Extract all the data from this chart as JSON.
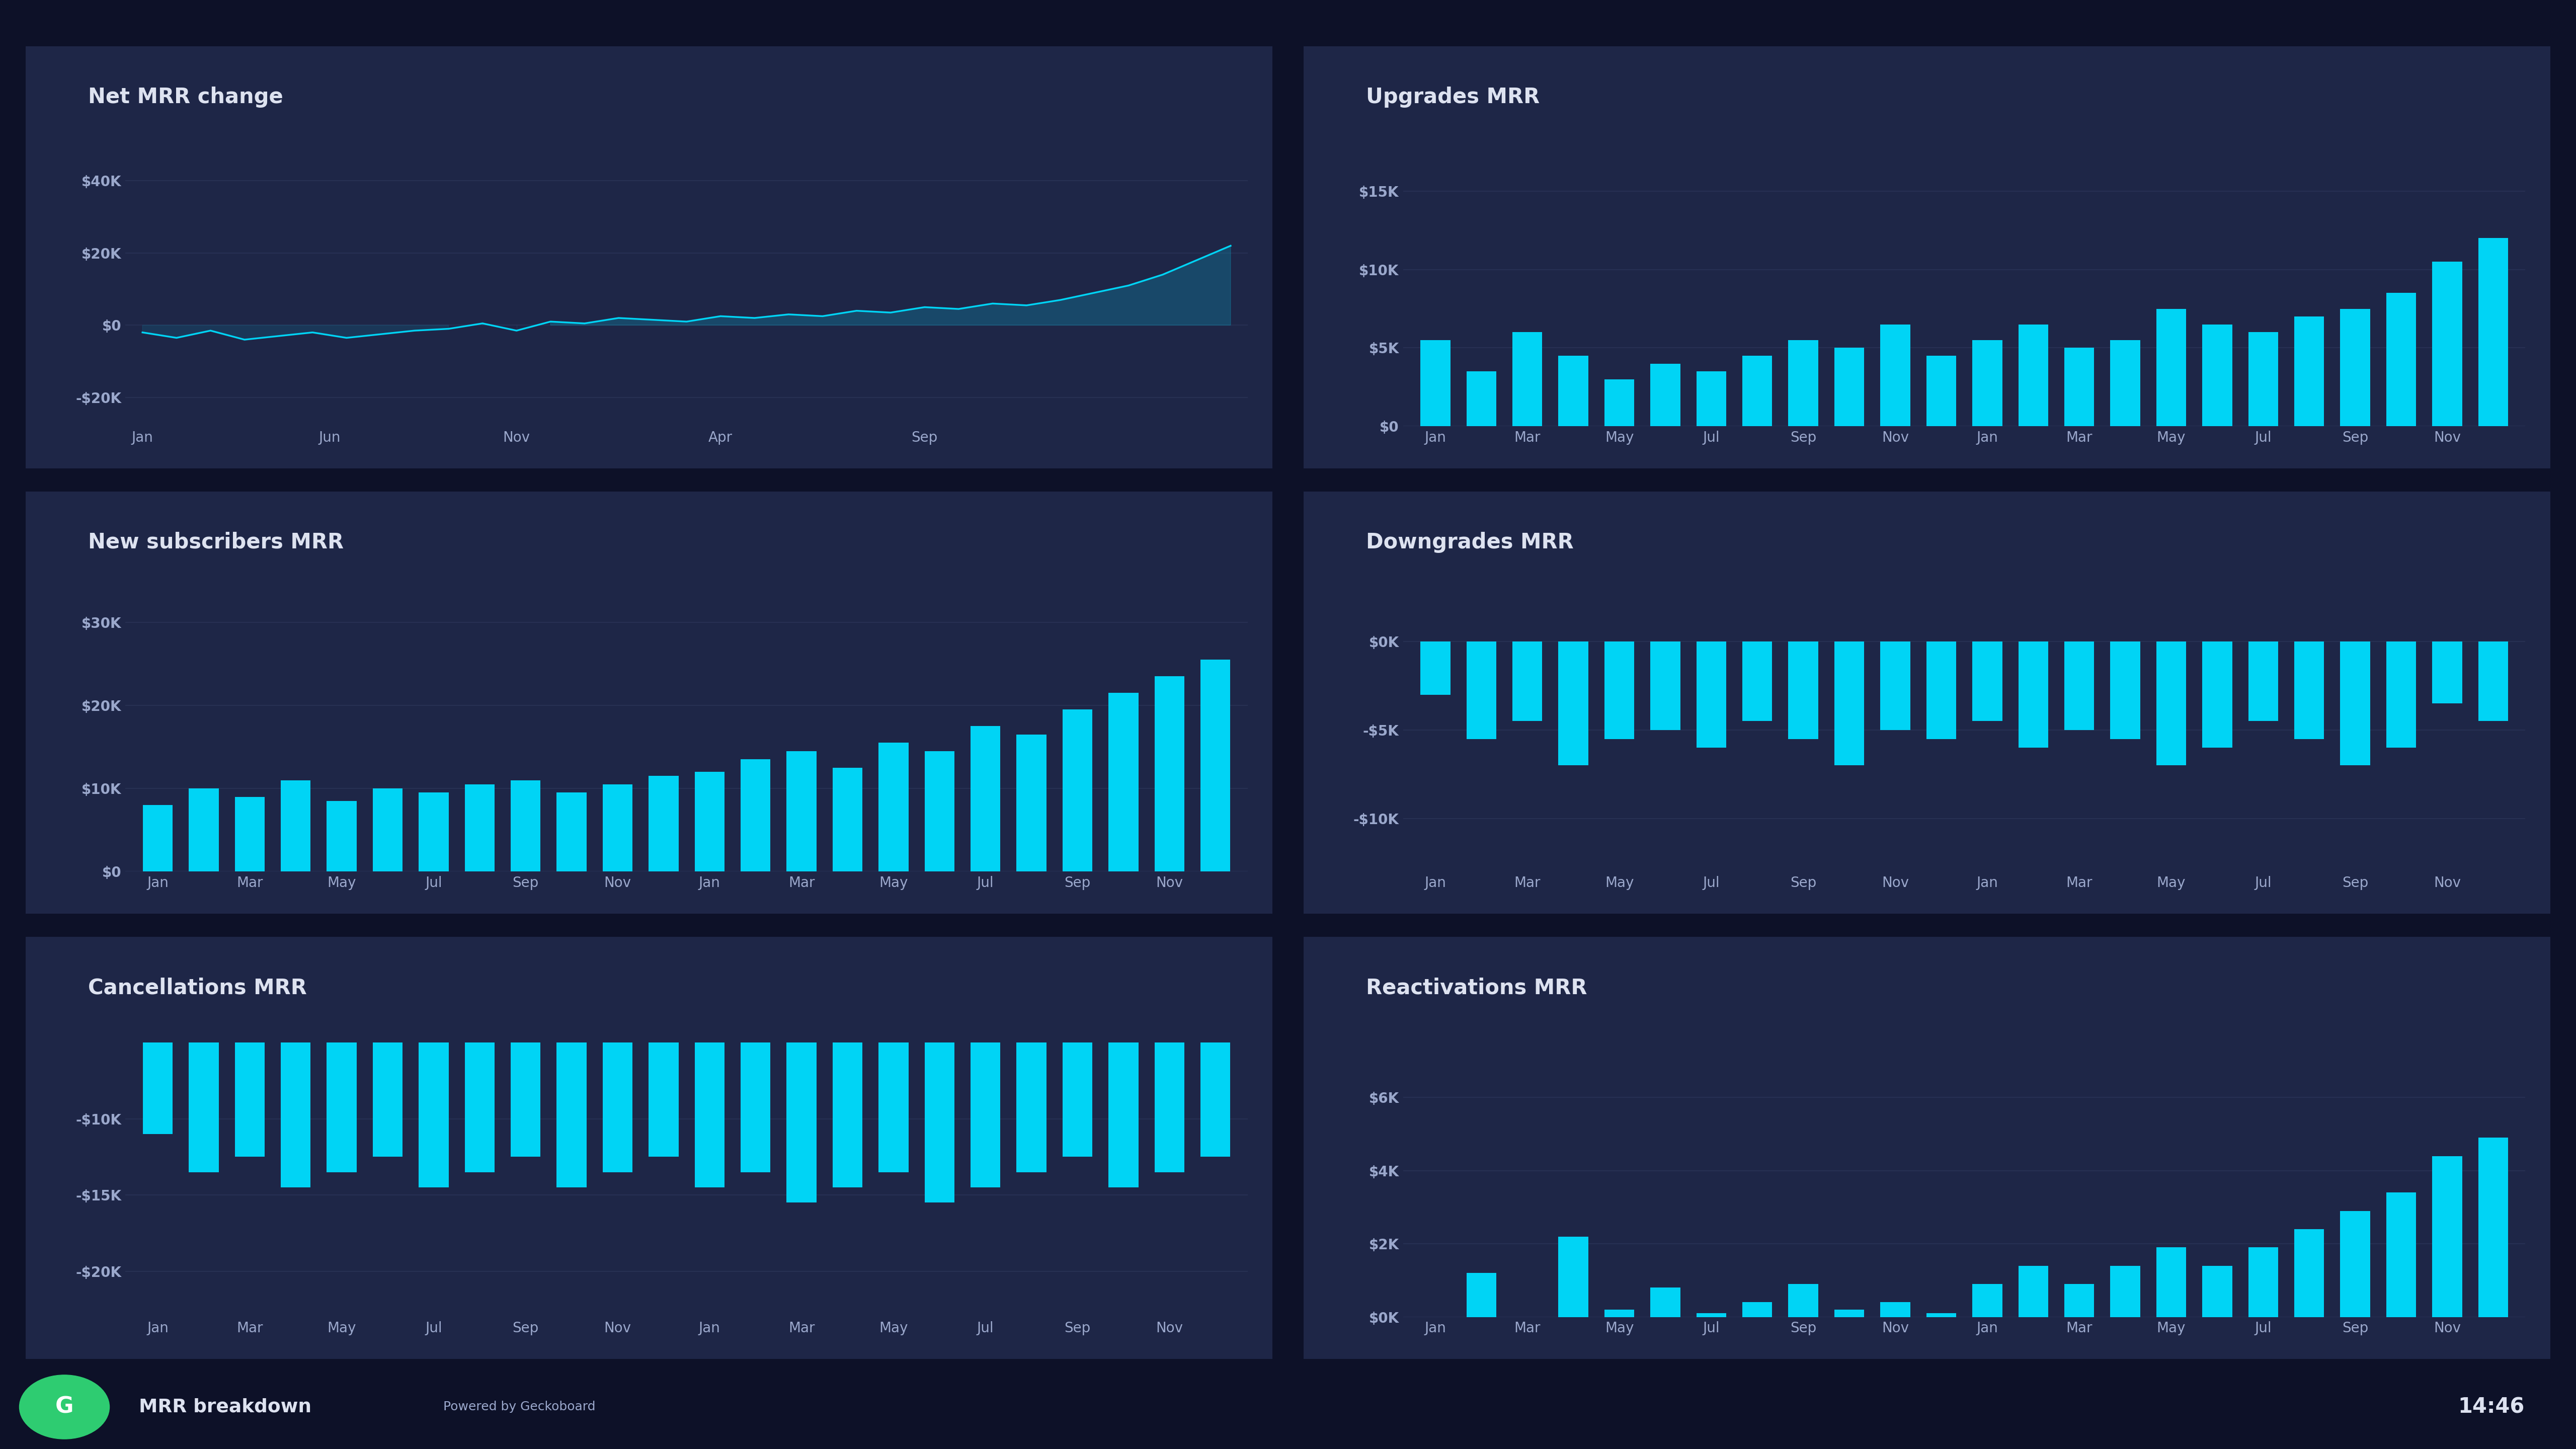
{
  "bg_color": "#0d1128",
  "panel_color": "#1e2647",
  "bar_color": "#00d4f5",
  "line_color": "#00d4f5",
  "fill_color": "#00d4f5",
  "text_color": "#9ba8cc",
  "title_color": "#dde2f0",
  "grid_color": "#2a3356",
  "footer_bg": "#0d1128",
  "logo_color": "#2ecc71",
  "net_mrr_title": "Net MRR change",
  "net_mrr_x_labels": [
    "Jan",
    "Jun",
    "Nov",
    "Apr",
    "Sep"
  ],
  "net_mrr_y_labels": [
    "$40K",
    "$20K",
    "$0",
    "-$20K"
  ],
  "net_mrr_ylim": [
    -28000,
    48000
  ],
  "net_mrr_yticks": [
    40000,
    20000,
    0,
    -20000
  ],
  "net_mrr_values": [
    -2000,
    -3500,
    -1500,
    -4000,
    -3000,
    -2000,
    -3500,
    -2500,
    -1500,
    -1000,
    500,
    -1500,
    1000,
    500,
    2000,
    1500,
    1000,
    2500,
    2000,
    3000,
    2500,
    4000,
    3500,
    5000,
    4500,
    6000,
    5500,
    7000,
    9000,
    11000,
    14000,
    18000,
    22000
  ],
  "net_mrr_x_tick_indices": [
    0,
    6.5,
    13,
    19.5,
    26
  ],
  "upgrades_mrr_title": "Upgrades MRR",
  "upgrades_mrr_y_labels": [
    "$15K",
    "$10K",
    "$5K",
    "$0"
  ],
  "upgrades_mrr_yticks": [
    15000,
    10000,
    5000,
    0
  ],
  "upgrades_mrr_ylim": [
    0,
    17500
  ],
  "upgrades_mrr_x_labels": [
    "Jan",
    "Mar",
    "May",
    "Jul",
    "Sep",
    "Nov",
    "Jan",
    "Mar",
    "May",
    "Jul",
    "Sep",
    "Nov"
  ],
  "upgrades_mrr_values": [
    5500,
    3500,
    6000,
    4500,
    3000,
    4000,
    3500,
    4500,
    5500,
    5000,
    6500,
    4500,
    5500,
    6500,
    5000,
    5500,
    7500,
    6500,
    6000,
    7000,
    7500,
    8500,
    10500,
    12000
  ],
  "new_subs_mrr_title": "New subscribers MRR",
  "new_subs_mrr_y_labels": [
    "$30K",
    "$20K",
    "$10K",
    "$0"
  ],
  "new_subs_mrr_yticks": [
    30000,
    20000,
    10000,
    0
  ],
  "new_subs_mrr_ylim": [
    0,
    33000
  ],
  "new_subs_mrr_x_labels": [
    "Jan",
    "Mar",
    "May",
    "Jul",
    "Sep",
    "Nov",
    "Jan",
    "Mar",
    "May",
    "Jul",
    "Sep",
    "Nov"
  ],
  "new_subs_mrr_values": [
    8000,
    10000,
    9000,
    11000,
    8500,
    10000,
    9500,
    10500,
    11000,
    9500,
    10500,
    11500,
    12000,
    13500,
    14500,
    12500,
    15500,
    14500,
    17500,
    16500,
    19500,
    21500,
    23500,
    25500
  ],
  "downgrades_mrr_title": "Downgrades MRR",
  "downgrades_mrr_y_labels": [
    "$0K",
    "-$5K",
    "-$10K"
  ],
  "downgrades_mrr_yticks": [
    0,
    -5000,
    -10000
  ],
  "downgrades_mrr_ylim": [
    -13000,
    2500
  ],
  "downgrades_mrr_x_labels": [
    "Jan",
    "Mar",
    "May",
    "Jul",
    "Sep",
    "Nov",
    "Jan",
    "Mar",
    "May",
    "Jul",
    "Sep",
    "Nov"
  ],
  "downgrades_mrr_values": [
    -3000,
    -5500,
    -4500,
    -7000,
    -5500,
    -5000,
    -6000,
    -4500,
    -5500,
    -7000,
    -5000,
    -5500,
    -4500,
    -6000,
    -5000,
    -5500,
    -7000,
    -6000,
    -4500,
    -5500,
    -7000,
    -6000,
    -3500,
    -4500
  ],
  "cancellations_mrr_title": "Cancellations MRR",
  "cancellations_mrr_y_labels": [
    "-$10K",
    "-$15K",
    "-$20K"
  ],
  "cancellations_mrr_yticks": [
    -10000,
    -15000,
    -20000
  ],
  "cancellations_mrr_ylim": [
    -23000,
    -5000
  ],
  "cancellations_mrr_x_labels": [
    "Jan",
    "Mar",
    "May",
    "Jul",
    "Sep",
    "Nov",
    "Jan",
    "Mar",
    "May",
    "Jul",
    "Sep",
    "Nov"
  ],
  "cancellations_mrr_values": [
    -11000,
    -13500,
    -12500,
    -14500,
    -13500,
    -12500,
    -14500,
    -13500,
    -12500,
    -14500,
    -13500,
    -12500,
    -14500,
    -13500,
    -15500,
    -14500,
    -13500,
    -15500,
    -14500,
    -13500,
    -12500,
    -14500,
    -13500,
    -12500
  ],
  "reactivations_mrr_title": "Reactivations MRR",
  "reactivations_mrr_y_labels": [
    "$6K",
    "$4K",
    "$2K",
    "$0K"
  ],
  "reactivations_mrr_yticks": [
    6000,
    4000,
    2000,
    0
  ],
  "reactivations_mrr_ylim": [
    0,
    7500
  ],
  "reactivations_mrr_x_labels": [
    "Jan",
    "Mar",
    "May",
    "Jul",
    "Sep",
    "Nov",
    "Jan",
    "Mar",
    "May",
    "Jul",
    "Sep",
    "Nov"
  ],
  "reactivations_mrr_values": [
    0,
    1200,
    0,
    2200,
    200,
    800,
    100,
    400,
    900,
    200,
    400,
    100,
    900,
    1400,
    900,
    1400,
    1900,
    1400,
    1900,
    2400,
    2900,
    3400,
    4400,
    4900
  ],
  "footer_logo_text": "MRR breakdown",
  "footer_sub_text": "Powered by Geckoboard",
  "footer_time": "14:46"
}
